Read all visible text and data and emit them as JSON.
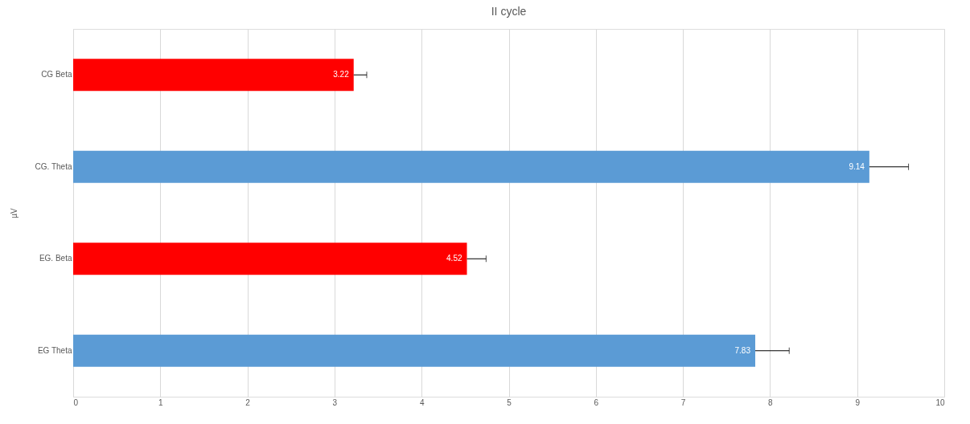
{
  "chart_data": {
    "type": "bar",
    "orientation": "horizontal",
    "title": "II cycle",
    "ylabel": "µV",
    "categories": [
      "CG Beta",
      "CG. Theta",
      "EG. Beta",
      "EG Theta"
    ],
    "values": [
      3.22,
      9.14,
      4.52,
      7.83
    ],
    "colors": [
      "#ff0000",
      "#5b9bd5",
      "#ff0000",
      "#5b9bd5"
    ],
    "errors": [
      [
        3.22,
        3.37
      ],
      [
        9.14,
        9.59
      ],
      [
        4.52,
        4.74
      ],
      [
        7.83,
        8.22
      ]
    ],
    "data_labels": true,
    "xlim": [
      0,
      10
    ],
    "xticks": [
      0,
      1,
      2,
      3,
      4,
      5,
      6,
      7,
      8,
      9,
      10
    ],
    "grid": "x"
  }
}
